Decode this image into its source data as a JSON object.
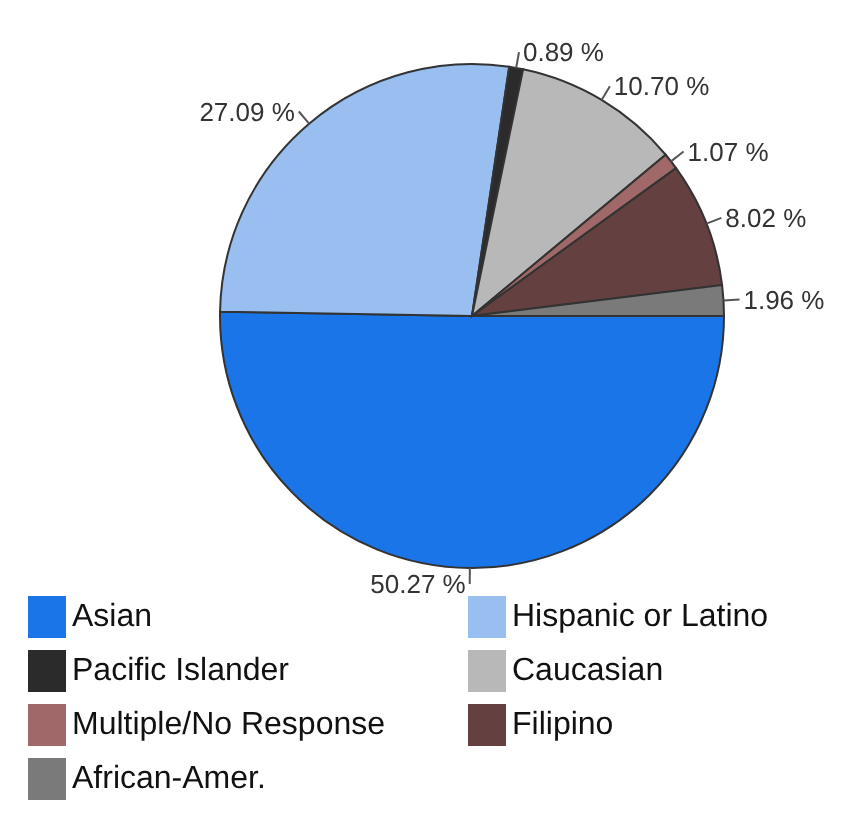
{
  "chart_data": {
    "type": "pie",
    "categories": [
      "Asian",
      "Hispanic or Latino",
      "Pacific Islander",
      "Caucasian",
      "Multiple/No Response",
      "Filipino",
      "African-Amer."
    ],
    "values": [
      50.27,
      27.09,
      0.89,
      10.7,
      1.07,
      8.02,
      1.96
    ],
    "value_labels": [
      "50.27 %",
      "27.09 %",
      "0.89 %",
      "10.70 %",
      "1.07 %",
      "8.02 %",
      "1.96 %"
    ],
    "colors": [
      "#1a76e8",
      "#98bff0",
      "#2b2b2b",
      "#b8b8b8",
      "#a06868",
      "#654040",
      "#7a7a7a"
    ],
    "legend": "bottom"
  }
}
